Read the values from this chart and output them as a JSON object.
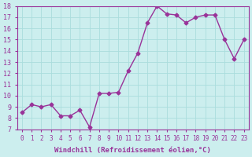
{
  "x_data": [
    0,
    1,
    2,
    3,
    4,
    5,
    6,
    7,
    8,
    9,
    10,
    11,
    12,
    13,
    14,
    15,
    16,
    17,
    18,
    19,
    20,
    21,
    22,
    23
  ],
  "y_data": [
    8.5,
    9.2,
    9.0,
    9.2,
    8.2,
    8.2,
    8.7,
    7.2,
    10.2,
    10.2,
    10.3,
    12.2,
    13.8,
    16.5,
    18.0,
    17.3,
    17.2,
    16.5,
    17.0,
    17.2,
    17.2,
    15.0,
    13.3,
    15.0
  ],
  "line_color": "#993399",
  "marker_color": "#993399",
  "bg_color": "#cceeee",
  "grid_color": "#aadddd",
  "xlabel": "Windchill (Refroidissement éolien,°C)",
  "xlabel_color": "#993399",
  "tick_color": "#993399",
  "ylim": [
    7,
    18
  ],
  "xlim_min": -0.5,
  "xlim_max": 23.5,
  "yticks": [
    7,
    8,
    9,
    10,
    11,
    12,
    13,
    14,
    15,
    16,
    17,
    18
  ],
  "xticks": [
    0,
    1,
    2,
    3,
    4,
    5,
    6,
    7,
    8,
    9,
    10,
    11,
    12,
    13,
    14,
    15,
    16,
    17,
    18,
    19,
    20,
    21,
    22,
    23
  ]
}
